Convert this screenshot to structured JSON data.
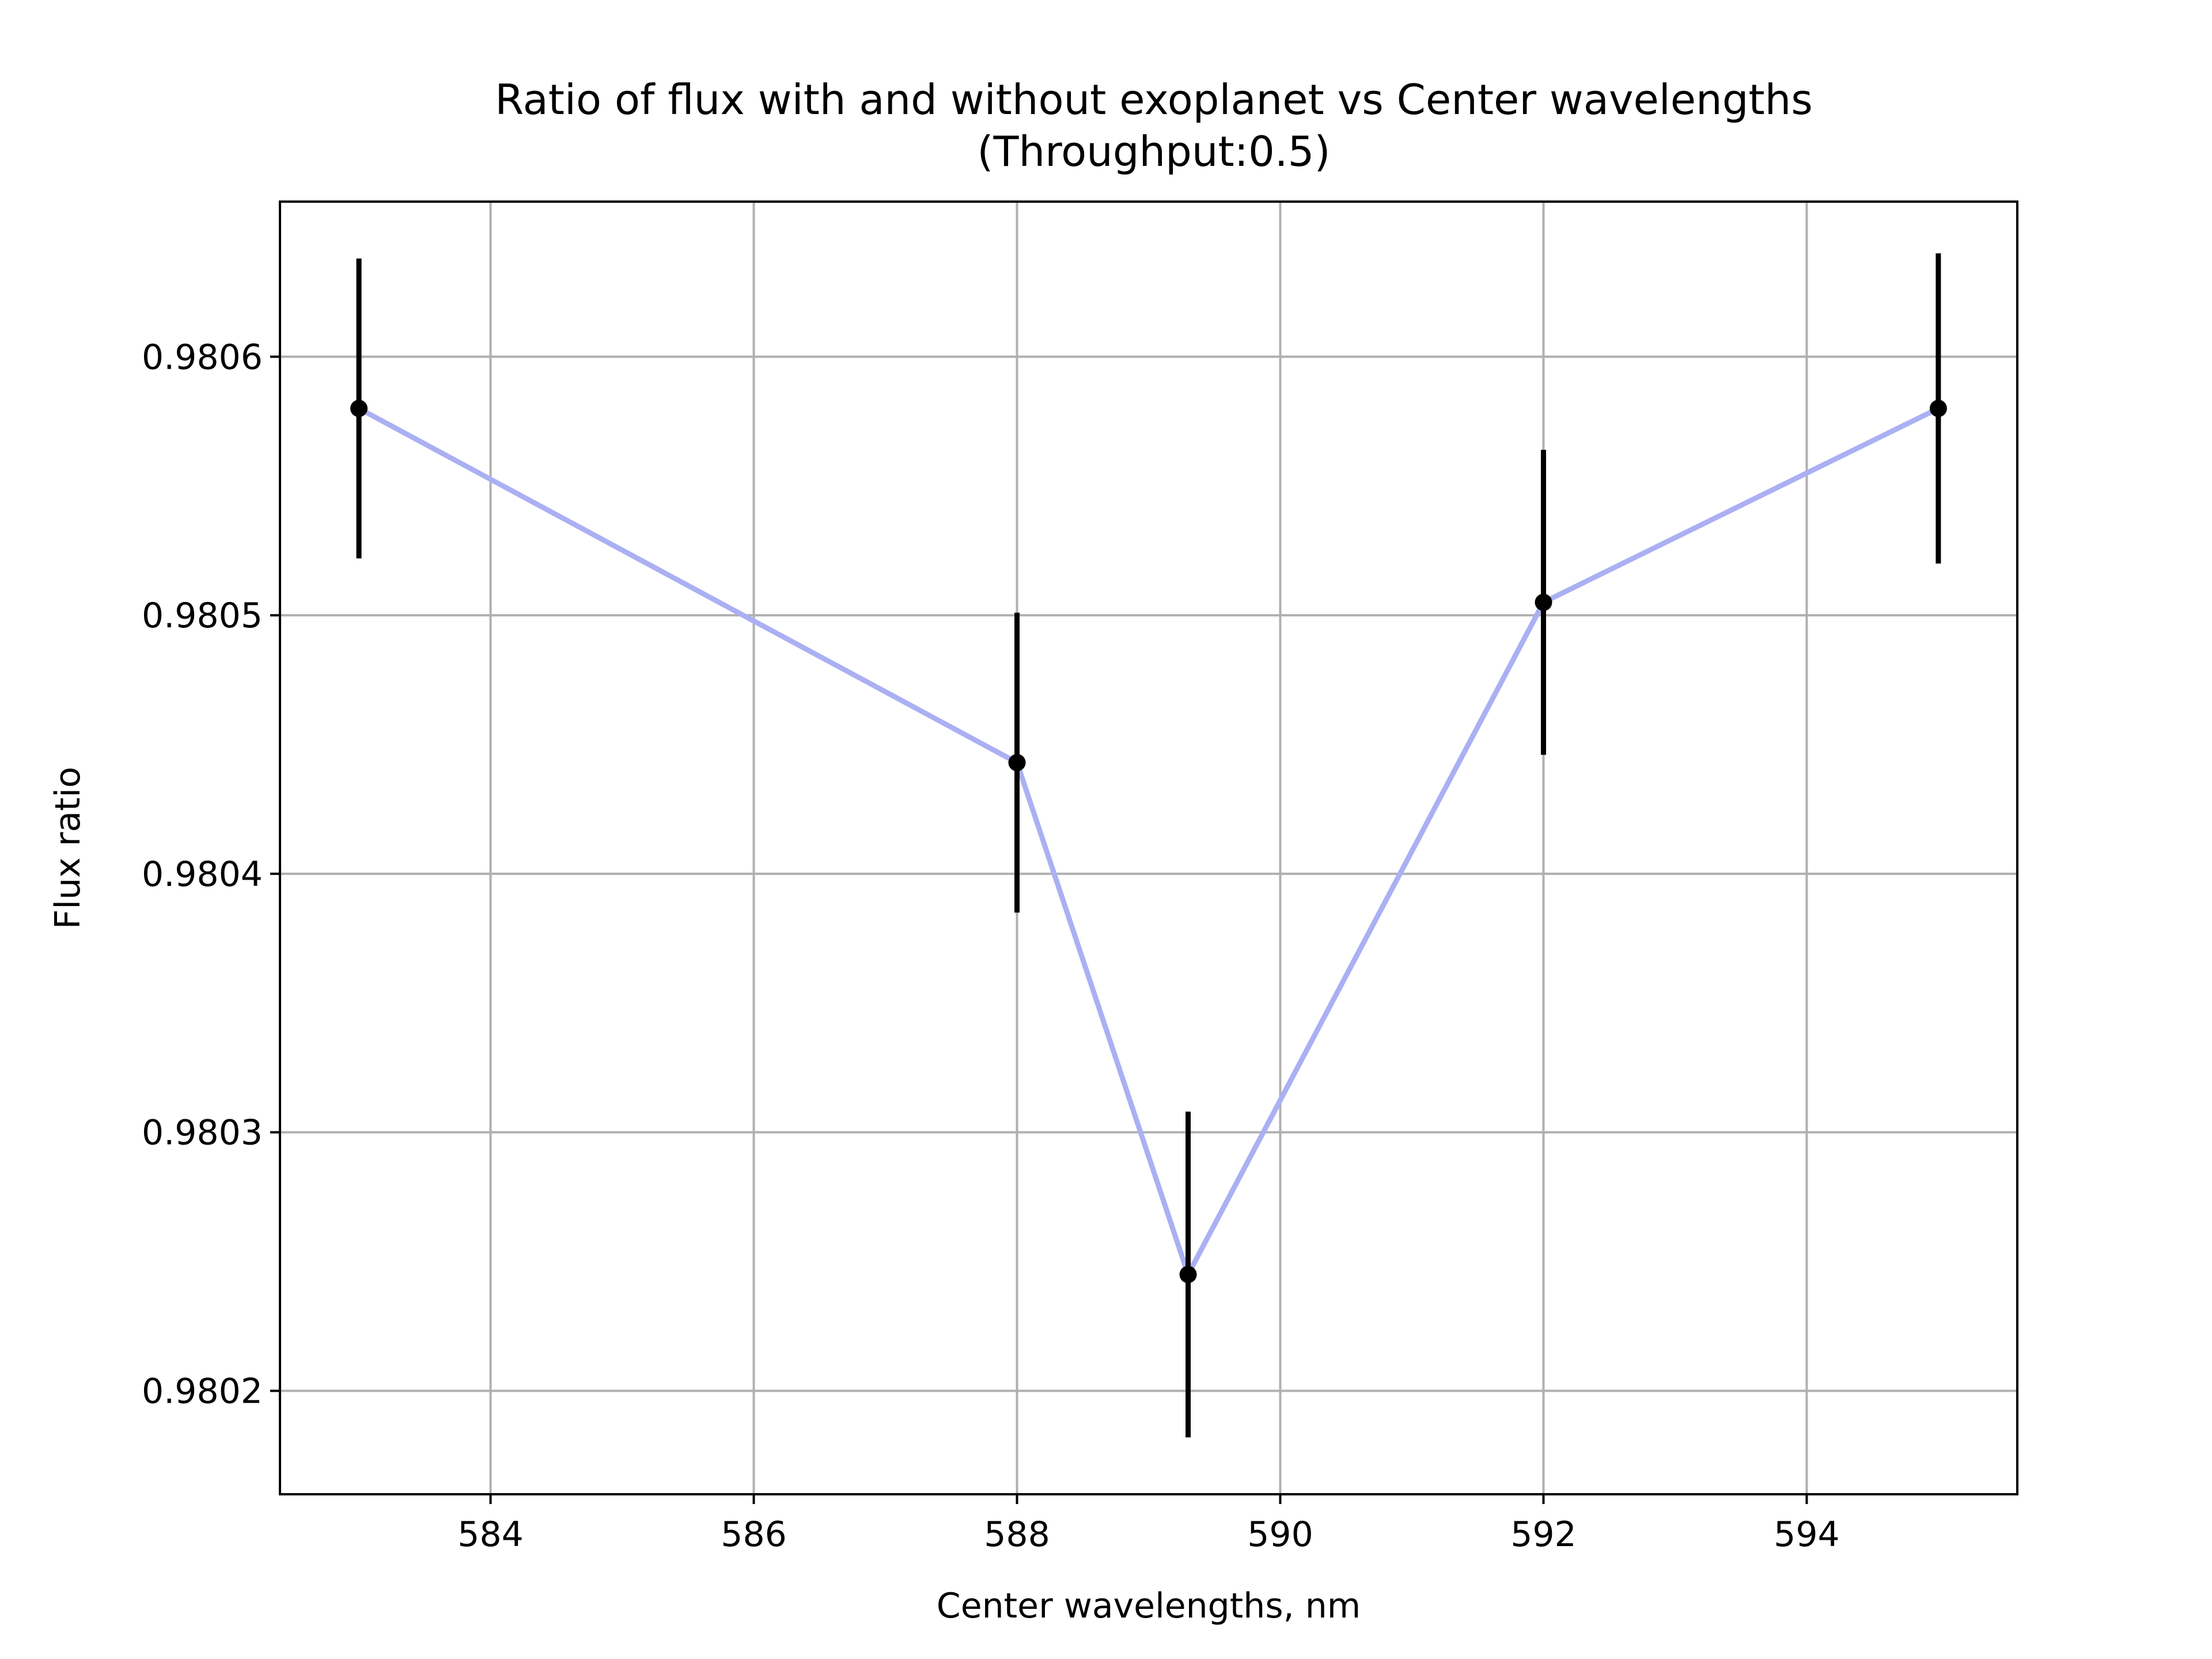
{
  "chart_data": {
    "type": "line",
    "title": "Ratio of flux with and without exoplanet vs Center wavelengths",
    "subtitle": "(Throughput:0.5)",
    "xlabel": "Center wavelengths, nm",
    "ylabel": "Flux ratio",
    "xlim": [
      582.4,
      595.6
    ],
    "ylim": [
      0.98016,
      0.98066
    ],
    "xticks": [
      584,
      586,
      588,
      590,
      592,
      594
    ],
    "xtick_labels": [
      "584",
      "586",
      "588",
      "590",
      "592",
      "594"
    ],
    "yticks": [
      0.9802,
      0.9803,
      0.9804,
      0.9805,
      0.9806
    ],
    "ytick_labels": [
      "0.9802",
      "0.9803",
      "0.9804",
      "0.9805",
      "0.9806"
    ],
    "grid": true,
    "series": [
      {
        "x": [
          583,
          588,
          589.3,
          592,
          595
        ],
        "y": [
          0.98058,
          0.980443,
          0.980245,
          0.980505,
          0.98058
        ],
        "yerr": [
          5.8e-05,
          5.8e-05,
          6.3e-05,
          5.9e-05,
          6e-05
        ],
        "line_color": "#aab0f2",
        "marker_color": "#000000",
        "errorbar_color": "#000000"
      }
    ]
  }
}
